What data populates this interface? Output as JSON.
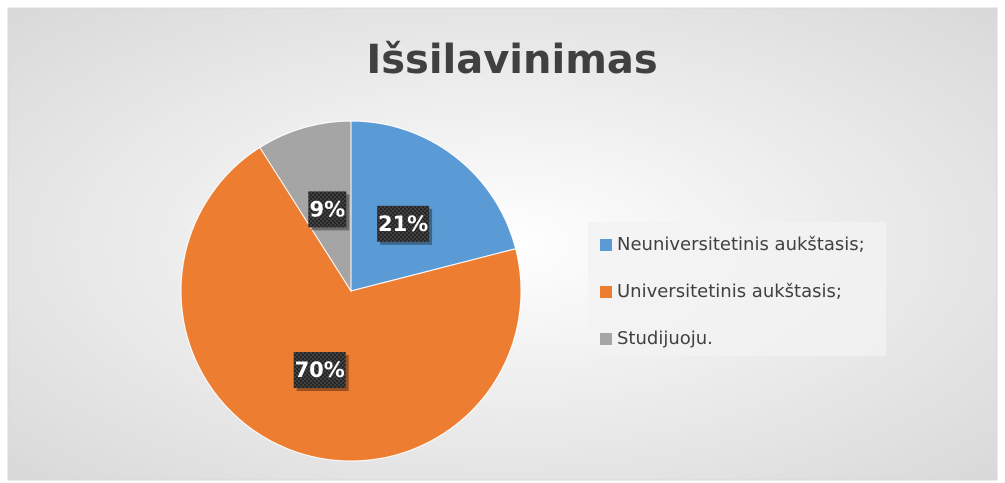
{
  "chart_data": {
    "type": "pie",
    "title": "Išsilavinimas",
    "categories": [
      "Neuniversitetinis aukštasis;",
      "Universitetinis aukštasis;",
      "Studijuoju."
    ],
    "values": [
      21,
      70,
      9
    ],
    "value_labels": [
      "21%",
      "70%",
      "9%"
    ],
    "colors": [
      "#5b9bd5",
      "#ed7d31",
      "#a5a5a5"
    ],
    "legend": "right"
  }
}
